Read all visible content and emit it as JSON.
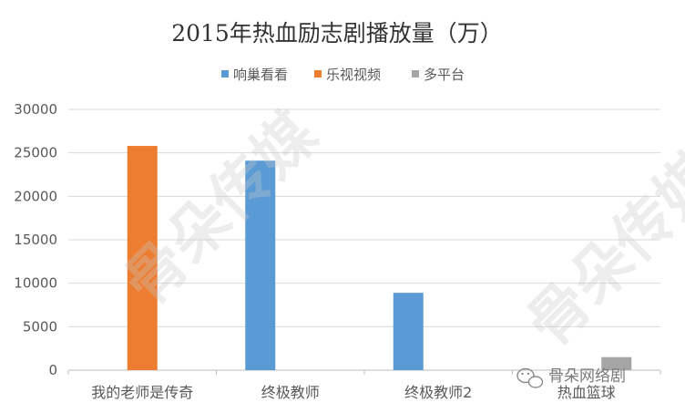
{
  "chart_data": {
    "type": "bar",
    "title": "2015年热血励志剧播放量（万）",
    "xlabel": "",
    "ylabel": "",
    "categories": [
      "我的老师是传奇",
      "终极教师",
      "终极教师2",
      "热血篮球"
    ],
    "series": [
      {
        "name": "响巢看看",
        "color": "#5b9bd5",
        "values": [
          null,
          24100,
          8900,
          null
        ]
      },
      {
        "name": "乐视视频",
        "color": "#ed7d31",
        "values": [
          25800,
          null,
          null,
          null
        ]
      },
      {
        "name": "多平台",
        "color": "#a5a5a5",
        "values": [
          null,
          null,
          null,
          1500
        ]
      }
    ],
    "ylim": [
      0,
      30000
    ],
    "yticks": [
      0,
      5000,
      10000,
      15000,
      20000,
      25000,
      30000
    ],
    "grid": true,
    "legend_position": "top"
  },
  "watermark": {
    "text": "骨朵传媒",
    "badge_text": "骨朵网络剧"
  }
}
